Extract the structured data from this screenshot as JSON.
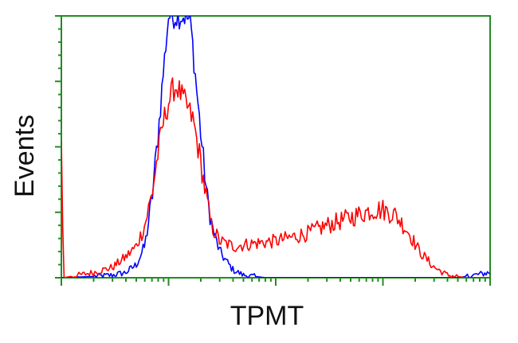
{
  "chart_data": {
    "type": "line",
    "title": "",
    "xlabel": "TPMT",
    "ylabel": "Events",
    "x_scale": "log",
    "xlim": [
      1,
      10000
    ],
    "ylim": [
      0,
      100
    ],
    "x_major_ticks": [
      1,
      10,
      100,
      1000,
      10000
    ],
    "y_major_ticks": [
      0,
      25,
      50,
      75,
      100
    ],
    "tick_labels_shown": false,
    "grid": false,
    "legend": "none",
    "frame_color": "#228B22",
    "series": [
      {
        "color": "#0000FF",
        "points": [
          [
            1.0,
            0
          ],
          [
            2.0,
            0.5
          ],
          [
            3.0,
            1
          ],
          [
            4.0,
            2
          ],
          [
            5.0,
            5
          ],
          [
            6.0,
            12
          ],
          [
            7.0,
            30
          ],
          [
            8.0,
            55
          ],
          [
            9.0,
            80
          ],
          [
            10.0,
            100
          ],
          [
            11.5,
            100
          ],
          [
            14.0,
            100
          ],
          [
            16.0,
            98
          ],
          [
            18.0,
            75
          ],
          [
            20.0,
            55
          ],
          [
            23.0,
            30
          ],
          [
            26.0,
            18
          ],
          [
            30.0,
            10
          ],
          [
            35.0,
            6
          ],
          [
            40.0,
            3
          ],
          [
            50.0,
            1
          ],
          [
            80.0,
            0
          ],
          [
            300.0,
            0
          ],
          [
            1000.0,
            0
          ],
          [
            5000.0,
            0
          ],
          [
            10000.0,
            2
          ]
        ]
      },
      {
        "color": "#FF0000",
        "points": [
          [
            1.0,
            50
          ],
          [
            1.05,
            0
          ],
          [
            2.0,
            2
          ],
          [
            3.0,
            4
          ],
          [
            4.0,
            8
          ],
          [
            5.0,
            12
          ],
          [
            6.0,
            20
          ],
          [
            7.0,
            32
          ],
          [
            8.0,
            48
          ],
          [
            9.0,
            60
          ],
          [
            10.0,
            67
          ],
          [
            11.0,
            72
          ],
          [
            12.0,
            73
          ],
          [
            13.0,
            70
          ],
          [
            15.0,
            65
          ],
          [
            17.0,
            60
          ],
          [
            20.0,
            44
          ],
          [
            22.0,
            33
          ],
          [
            25.0,
            20
          ],
          [
            30.0,
            14
          ],
          [
            40.0,
            12
          ],
          [
            60.0,
            13
          ],
          [
            100.0,
            14
          ],
          [
            200.0,
            17
          ],
          [
            300.0,
            20
          ],
          [
            500.0,
            23
          ],
          [
            800.0,
            26
          ],
          [
            1000.0,
            26
          ],
          [
            1300.0,
            24
          ],
          [
            1700.0,
            18
          ],
          [
            2200.0,
            10
          ],
          [
            3000.0,
            4
          ],
          [
            4000.0,
            1
          ],
          [
            6000.0,
            0
          ],
          [
            10000.0,
            0
          ]
        ]
      }
    ]
  }
}
